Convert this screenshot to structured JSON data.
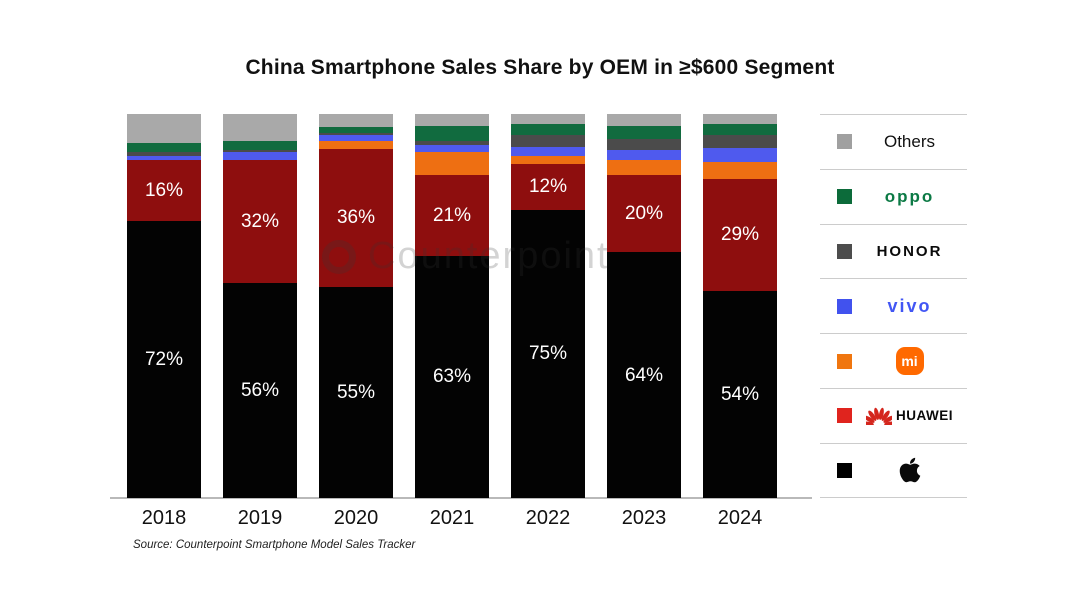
{
  "watermark": {
    "text": "Counterpoint"
  },
  "chart_data": {
    "type": "bar",
    "stacked": true,
    "stack_total": 100,
    "title": "China Smartphone Sales Share by OEM in ≥$600 Segment",
    "source": "Source: Counterpoint Smartphone Model Sales Tracker",
    "categories": [
      "2018",
      "2019",
      "2020",
      "2021",
      "2022",
      "2023",
      "2024"
    ],
    "ylim": [
      0,
      100
    ],
    "grid": false,
    "legend_position": "right",
    "value_label_format": "{v}%",
    "label_min_value": 10,
    "series": [
      {
        "name": "Apple",
        "color": "#030303",
        "show_labels": true,
        "values": [
          72,
          56,
          55,
          63,
          75,
          64,
          54
        ]
      },
      {
        "name": "HUAWEI",
        "color": "#8e0e0e",
        "show_labels": true,
        "values": [
          16,
          32,
          36,
          21,
          12,
          20,
          29
        ]
      },
      {
        "name": "Mi",
        "color": "#ee6f12",
        "show_labels": false,
        "values": [
          0,
          0,
          2,
          6,
          2,
          4,
          4.5
        ]
      },
      {
        "name": "vivo",
        "color": "#4f5aee",
        "show_labels": false,
        "values": [
          1,
          2,
          1.5,
          2,
          2.5,
          2.5,
          3.5
        ]
      },
      {
        "name": "HONOR",
        "color": "#4b4b4b",
        "show_labels": false,
        "values": [
          1,
          0.5,
          0.5,
          1,
          3,
          3,
          3.5
        ]
      },
      {
        "name": "OPPO",
        "color": "#116b3f",
        "show_labels": false,
        "values": [
          2.5,
          2.5,
          1.5,
          4,
          3,
          3.5,
          3
        ]
      },
      {
        "name": "Others",
        "color": "#a9a9a9",
        "show_labels": false,
        "values": [
          7.5,
          7,
          3.5,
          3,
          2.5,
          3,
          2.5
        ]
      }
    ]
  },
  "legend": {
    "items": [
      {
        "name": "Others",
        "label": "Others",
        "swatch": "#a0a0a0",
        "icon": "gray-square"
      },
      {
        "name": "OPPO",
        "label": "oppo",
        "swatch": "#0c6b3a",
        "icon": "oppo-logo"
      },
      {
        "name": "HONOR",
        "label": "HONOR",
        "swatch": "#4d4d4d",
        "icon": "honor-logo"
      },
      {
        "name": "vivo",
        "label": "vivo",
        "swatch": "#4152ee",
        "icon": "vivo-logo"
      },
      {
        "name": "Mi",
        "label": "mi",
        "swatch": "#f0760f",
        "icon": "xiaomi-logo"
      },
      {
        "name": "HUAWEI",
        "label": "HUAWEI",
        "swatch": "#e0241e",
        "icon": "huawei-flower"
      },
      {
        "name": "Apple",
        "label": "",
        "swatch": "#000000",
        "icon": "apple-logo"
      }
    ]
  }
}
